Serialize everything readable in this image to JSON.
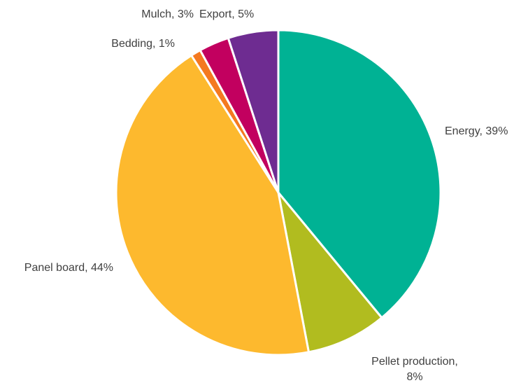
{
  "chart_data": {
    "type": "pie",
    "title": "",
    "start": "12 o'clock",
    "direction": "clockwise",
    "slices": [
      {
        "label": "Energy, 39%",
        "lines": [
          "Energy, 39%"
        ],
        "value": 39,
        "color": "#00B294"
      },
      {
        "label": "Pellet production, 8%",
        "lines": [
          "Pellet production,",
          "8%"
        ],
        "value": 8,
        "color": "#B1BC1F"
      },
      {
        "label": "Panel board, 44%",
        "lines": [
          "Panel board, 44%"
        ],
        "value": 44,
        "color": "#FDB92E"
      },
      {
        "label": "Bedding, 1%",
        "lines": [
          "Bedding, 1%"
        ],
        "value": 1,
        "color": "#F47920"
      },
      {
        "label": "Mulch, 3%",
        "lines": [
          "Mulch, 3%"
        ],
        "value": 3,
        "color": "#C2005F"
      },
      {
        "label": "Export, 5%",
        "lines": [
          "Export, 5%"
        ],
        "value": 5,
        "color": "#6E2C91"
      }
    ],
    "legend": "none",
    "data_labels": "outside"
  }
}
